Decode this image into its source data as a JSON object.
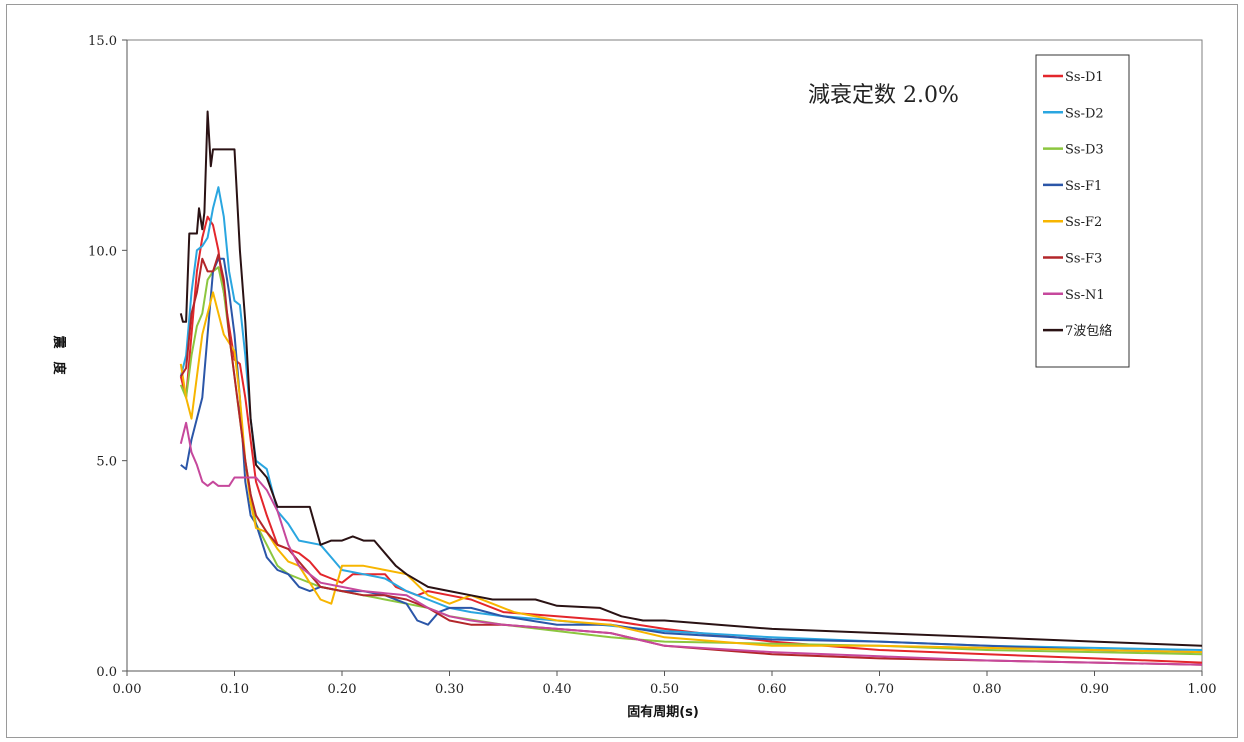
{
  "chart_data": {
    "type": "line",
    "title": "",
    "annotation": "減衰定数 2.0%",
    "xlabel": "固有周期(s)",
    "ylabel": "震　度",
    "xlim": [
      0.0,
      1.0
    ],
    "ylim": [
      0.0,
      15.0
    ],
    "x_ticks": [
      "0.00",
      "0.10",
      "0.20",
      "0.30",
      "0.40",
      "0.50",
      "0.60",
      "0.70",
      "0.80",
      "0.90",
      "1.00"
    ],
    "y_ticks": [
      "0.0",
      "5.0",
      "10.0",
      "15.0"
    ],
    "grid": false,
    "legend_position": "top-right",
    "series": [
      {
        "name": "Ss-D1",
        "color": "#e3262b",
        "points": [
          [
            0.05,
            7.0
          ],
          [
            0.055,
            6.5
          ],
          [
            0.06,
            8.0
          ],
          [
            0.065,
            9.5
          ],
          [
            0.07,
            10.3
          ],
          [
            0.075,
            10.8
          ],
          [
            0.08,
            10.6
          ],
          [
            0.085,
            10.0
          ],
          [
            0.09,
            9.0
          ],
          [
            0.095,
            8.2
          ],
          [
            0.1,
            7.4
          ],
          [
            0.105,
            7.3
          ],
          [
            0.11,
            6.5
          ],
          [
            0.115,
            5.5
          ],
          [
            0.12,
            4.5
          ],
          [
            0.13,
            3.7
          ],
          [
            0.14,
            3.0
          ],
          [
            0.15,
            2.9
          ],
          [
            0.16,
            2.8
          ],
          [
            0.17,
            2.6
          ],
          [
            0.18,
            2.3
          ],
          [
            0.19,
            2.2
          ],
          [
            0.2,
            2.1
          ],
          [
            0.21,
            2.3
          ],
          [
            0.22,
            2.3
          ],
          [
            0.24,
            2.3
          ],
          [
            0.25,
            2.0
          ],
          [
            0.27,
            1.8
          ],
          [
            0.28,
            1.9
          ],
          [
            0.3,
            1.8
          ],
          [
            0.32,
            1.7
          ],
          [
            0.35,
            1.4
          ],
          [
            0.4,
            1.3
          ],
          [
            0.45,
            1.2
          ],
          [
            0.5,
            1.0
          ],
          [
            0.6,
            0.7
          ],
          [
            0.7,
            0.5
          ],
          [
            0.8,
            0.4
          ],
          [
            0.9,
            0.3
          ],
          [
            1.0,
            0.2
          ]
        ]
      },
      {
        "name": "Ss-D2",
        "color": "#2aa6e0",
        "points": [
          [
            0.05,
            7.0
          ],
          [
            0.055,
            7.5
          ],
          [
            0.06,
            9.0
          ],
          [
            0.065,
            10.0
          ],
          [
            0.07,
            10.1
          ],
          [
            0.075,
            10.3
          ],
          [
            0.08,
            11.0
          ],
          [
            0.085,
            11.5
          ],
          [
            0.09,
            10.8
          ],
          [
            0.095,
            9.5
          ],
          [
            0.1,
            8.8
          ],
          [
            0.105,
            8.7
          ],
          [
            0.11,
            7.5
          ],
          [
            0.115,
            6.0
          ],
          [
            0.12,
            5.0
          ],
          [
            0.13,
            4.8
          ],
          [
            0.14,
            3.8
          ],
          [
            0.15,
            3.5
          ],
          [
            0.16,
            3.1
          ],
          [
            0.18,
            3.0
          ],
          [
            0.19,
            2.7
          ],
          [
            0.2,
            2.4
          ],
          [
            0.22,
            2.3
          ],
          [
            0.24,
            2.2
          ],
          [
            0.26,
            1.9
          ],
          [
            0.28,
            1.7
          ],
          [
            0.3,
            1.5
          ],
          [
            0.32,
            1.4
          ],
          [
            0.35,
            1.3
          ],
          [
            0.4,
            1.2
          ],
          [
            0.5,
            0.95
          ],
          [
            0.6,
            0.8
          ],
          [
            0.7,
            0.7
          ],
          [
            0.8,
            0.6
          ],
          [
            0.9,
            0.55
          ],
          [
            1.0,
            0.5
          ]
        ]
      },
      {
        "name": "Ss-D3",
        "color": "#8cc63f",
        "points": [
          [
            0.05,
            6.8
          ],
          [
            0.055,
            6.5
          ],
          [
            0.06,
            7.5
          ],
          [
            0.065,
            8.2
          ],
          [
            0.07,
            8.5
          ],
          [
            0.075,
            9.3
          ],
          [
            0.08,
            9.5
          ],
          [
            0.085,
            9.6
          ],
          [
            0.09,
            9.0
          ],
          [
            0.095,
            8.0
          ],
          [
            0.1,
            7.0
          ],
          [
            0.105,
            6.0
          ],
          [
            0.11,
            5.0
          ],
          [
            0.115,
            4.2
          ],
          [
            0.12,
            3.5
          ],
          [
            0.13,
            3.0
          ],
          [
            0.14,
            2.5
          ],
          [
            0.15,
            2.3
          ],
          [
            0.16,
            2.2
          ],
          [
            0.18,
            2.0
          ],
          [
            0.2,
            1.9
          ],
          [
            0.22,
            1.8
          ],
          [
            0.24,
            1.7
          ],
          [
            0.26,
            1.6
          ],
          [
            0.28,
            1.5
          ],
          [
            0.3,
            1.3
          ],
          [
            0.35,
            1.1
          ],
          [
            0.4,
            0.95
          ],
          [
            0.45,
            0.8
          ],
          [
            0.5,
            0.7
          ],
          [
            0.6,
            0.65
          ],
          [
            0.7,
            0.6
          ],
          [
            0.8,
            0.5
          ],
          [
            0.9,
            0.45
          ],
          [
            1.0,
            0.4
          ]
        ]
      },
      {
        "name": "Ss-F1",
        "color": "#2b56a8",
        "points": [
          [
            0.05,
            4.9
          ],
          [
            0.055,
            4.8
          ],
          [
            0.06,
            5.5
          ],
          [
            0.065,
            6.0
          ],
          [
            0.07,
            6.5
          ],
          [
            0.075,
            8.0
          ],
          [
            0.08,
            9.5
          ],
          [
            0.085,
            9.8
          ],
          [
            0.09,
            9.8
          ],
          [
            0.095,
            9.0
          ],
          [
            0.1,
            8.0
          ],
          [
            0.105,
            6.5
          ],
          [
            0.11,
            4.5
          ],
          [
            0.115,
            3.7
          ],
          [
            0.12,
            3.5
          ],
          [
            0.13,
            2.7
          ],
          [
            0.14,
            2.4
          ],
          [
            0.15,
            2.3
          ],
          [
            0.16,
            2.0
          ],
          [
            0.17,
            1.9
          ],
          [
            0.18,
            2.0
          ],
          [
            0.2,
            1.9
          ],
          [
            0.22,
            1.9
          ],
          [
            0.24,
            1.8
          ],
          [
            0.26,
            1.6
          ],
          [
            0.27,
            1.2
          ],
          [
            0.28,
            1.1
          ],
          [
            0.29,
            1.4
          ],
          [
            0.3,
            1.5
          ],
          [
            0.32,
            1.5
          ],
          [
            0.35,
            1.3
          ],
          [
            0.4,
            1.1
          ],
          [
            0.45,
            1.1
          ],
          [
            0.5,
            0.9
          ],
          [
            0.6,
            0.75
          ],
          [
            0.7,
            0.7
          ],
          [
            0.8,
            0.6
          ],
          [
            0.9,
            0.5
          ],
          [
            1.0,
            0.45
          ]
        ]
      },
      {
        "name": "Ss-F2",
        "color": "#f7b500",
        "points": [
          [
            0.05,
            7.3
          ],
          [
            0.055,
            6.5
          ],
          [
            0.06,
            6.0
          ],
          [
            0.065,
            7.0
          ],
          [
            0.07,
            8.0
          ],
          [
            0.075,
            8.5
          ],
          [
            0.08,
            9.0
          ],
          [
            0.085,
            8.5
          ],
          [
            0.09,
            8.0
          ],
          [
            0.095,
            7.8
          ],
          [
            0.1,
            7.6
          ],
          [
            0.105,
            6.5
          ],
          [
            0.11,
            5.0
          ],
          [
            0.115,
            4.0
          ],
          [
            0.12,
            3.4
          ],
          [
            0.13,
            3.3
          ],
          [
            0.14,
            2.9
          ],
          [
            0.15,
            2.6
          ],
          [
            0.16,
            2.5
          ],
          [
            0.18,
            1.7
          ],
          [
            0.19,
            1.6
          ],
          [
            0.2,
            2.5
          ],
          [
            0.22,
            2.5
          ],
          [
            0.24,
            2.4
          ],
          [
            0.26,
            2.3
          ],
          [
            0.28,
            1.8
          ],
          [
            0.3,
            1.6
          ],
          [
            0.32,
            1.8
          ],
          [
            0.34,
            1.6
          ],
          [
            0.36,
            1.4
          ],
          [
            0.4,
            1.2
          ],
          [
            0.45,
            1.1
          ],
          [
            0.5,
            0.8
          ],
          [
            0.6,
            0.6
          ],
          [
            0.7,
            0.6
          ],
          [
            0.8,
            0.55
          ],
          [
            0.9,
            0.5
          ],
          [
            1.0,
            0.45
          ]
        ]
      },
      {
        "name": "Ss-F3",
        "color": "#b3262a",
        "points": [
          [
            0.05,
            7.0
          ],
          [
            0.055,
            7.2
          ],
          [
            0.06,
            8.5
          ],
          [
            0.065,
            9.0
          ],
          [
            0.07,
            9.8
          ],
          [
            0.075,
            9.5
          ],
          [
            0.08,
            9.5
          ],
          [
            0.085,
            9.9
          ],
          [
            0.09,
            9.3
          ],
          [
            0.095,
            8.0
          ],
          [
            0.1,
            7.0
          ],
          [
            0.105,
            6.0
          ],
          [
            0.11,
            5.0
          ],
          [
            0.115,
            4.2
          ],
          [
            0.12,
            3.7
          ],
          [
            0.13,
            3.3
          ],
          [
            0.14,
            3.0
          ],
          [
            0.15,
            2.9
          ],
          [
            0.16,
            2.6
          ],
          [
            0.18,
            2.0
          ],
          [
            0.2,
            1.9
          ],
          [
            0.22,
            1.8
          ],
          [
            0.24,
            1.8
          ],
          [
            0.26,
            1.7
          ],
          [
            0.28,
            1.5
          ],
          [
            0.3,
            1.2
          ],
          [
            0.32,
            1.1
          ],
          [
            0.35,
            1.1
          ],
          [
            0.4,
            1.0
          ],
          [
            0.45,
            0.9
          ],
          [
            0.5,
            0.6
          ],
          [
            0.6,
            0.4
          ],
          [
            0.7,
            0.3
          ],
          [
            0.8,
            0.25
          ],
          [
            0.9,
            0.2
          ],
          [
            1.0,
            0.15
          ]
        ]
      },
      {
        "name": "Ss-N1",
        "color": "#c6489c",
        "points": [
          [
            0.05,
            5.4
          ],
          [
            0.055,
            5.9
          ],
          [
            0.06,
            5.2
          ],
          [
            0.065,
            4.9
          ],
          [
            0.07,
            4.5
          ],
          [
            0.075,
            4.4
          ],
          [
            0.08,
            4.5
          ],
          [
            0.085,
            4.4
          ],
          [
            0.09,
            4.4
          ],
          [
            0.095,
            4.4
          ],
          [
            0.1,
            4.6
          ],
          [
            0.11,
            4.6
          ],
          [
            0.12,
            4.6
          ],
          [
            0.13,
            4.3
          ],
          [
            0.14,
            3.8
          ],
          [
            0.15,
            3.0
          ],
          [
            0.16,
            2.5
          ],
          [
            0.18,
            2.1
          ],
          [
            0.2,
            2.0
          ],
          [
            0.22,
            1.9
          ],
          [
            0.24,
            1.85
          ],
          [
            0.26,
            1.8
          ],
          [
            0.28,
            1.5
          ],
          [
            0.3,
            1.3
          ],
          [
            0.32,
            1.2
          ],
          [
            0.35,
            1.1
          ],
          [
            0.4,
            1.0
          ],
          [
            0.45,
            0.9
          ],
          [
            0.5,
            0.6
          ],
          [
            0.6,
            0.45
          ],
          [
            0.7,
            0.35
          ],
          [
            0.8,
            0.25
          ],
          [
            0.9,
            0.2
          ],
          [
            1.0,
            0.15
          ]
        ]
      },
      {
        "name": "7波包絡",
        "color": "#2a1214",
        "points": [
          [
            0.05,
            8.5
          ],
          [
            0.052,
            8.3
          ],
          [
            0.055,
            8.3
          ],
          [
            0.058,
            10.4
          ],
          [
            0.06,
            10.4
          ],
          [
            0.065,
            10.4
          ],
          [
            0.067,
            11.0
          ],
          [
            0.07,
            10.5
          ],
          [
            0.072,
            10.9
          ],
          [
            0.075,
            13.3
          ],
          [
            0.078,
            12.0
          ],
          [
            0.08,
            12.4
          ],
          [
            0.09,
            12.4
          ],
          [
            0.1,
            12.4
          ],
          [
            0.105,
            10.0
          ],
          [
            0.11,
            8.3
          ],
          [
            0.115,
            6.0
          ],
          [
            0.12,
            4.9
          ],
          [
            0.13,
            4.6
          ],
          [
            0.14,
            3.9
          ],
          [
            0.15,
            3.9
          ],
          [
            0.16,
            3.9
          ],
          [
            0.17,
            3.9
          ],
          [
            0.18,
            3.0
          ],
          [
            0.19,
            3.1
          ],
          [
            0.2,
            3.1
          ],
          [
            0.21,
            3.2
          ],
          [
            0.22,
            3.1
          ],
          [
            0.23,
            3.1
          ],
          [
            0.24,
            2.8
          ],
          [
            0.25,
            2.5
          ],
          [
            0.26,
            2.3
          ],
          [
            0.28,
            2.0
          ],
          [
            0.3,
            1.9
          ],
          [
            0.32,
            1.8
          ],
          [
            0.34,
            1.7
          ],
          [
            0.36,
            1.7
          ],
          [
            0.38,
            1.7
          ],
          [
            0.4,
            1.55
          ],
          [
            0.44,
            1.5
          ],
          [
            0.46,
            1.3
          ],
          [
            0.48,
            1.2
          ],
          [
            0.5,
            1.2
          ],
          [
            0.55,
            1.1
          ],
          [
            0.6,
            1.0
          ],
          [
            0.7,
            0.9
          ],
          [
            0.8,
            0.8
          ],
          [
            0.9,
            0.7
          ],
          [
            1.0,
            0.6
          ]
        ]
      }
    ]
  }
}
